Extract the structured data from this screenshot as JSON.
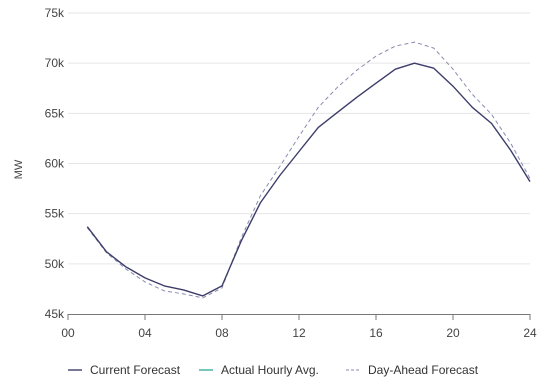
{
  "chart_data": {
    "type": "line",
    "title": "",
    "xlabel": "",
    "ylabel": "MW",
    "x_ticks": [
      "00",
      "04",
      "08",
      "12",
      "16",
      "20",
      "24"
    ],
    "x_tick_values": [
      0,
      4,
      8,
      12,
      16,
      20,
      24
    ],
    "xlim": [
      0,
      24
    ],
    "y_ticks": [
      "45k",
      "50k",
      "55k",
      "60k",
      "65k",
      "70k",
      "75k"
    ],
    "y_tick_values": [
      45000,
      50000,
      55000,
      60000,
      65000,
      70000,
      75000
    ],
    "ylim": [
      45000,
      75000
    ],
    "grid": "horizontal",
    "legend_position": "bottom",
    "series": [
      {
        "name": "Current Forecast",
        "color": "#3d3d6b",
        "style": "solid",
        "x": [
          1,
          2,
          3,
          4,
          5,
          6,
          7,
          8,
          9,
          10,
          11,
          12,
          13,
          14,
          15,
          16,
          17,
          18,
          19,
          20,
          21,
          22,
          23,
          24
        ],
        "values": [
          53700,
          51200,
          49700,
          48600,
          47800,
          47400,
          46800,
          47800,
          52300,
          56100,
          58800,
          61200,
          63600,
          65100,
          66600,
          68000,
          69400,
          70000,
          69500,
          67700,
          65600,
          64000,
          61300,
          58200
        ]
      },
      {
        "name": "Actual Hourly Avg.",
        "color": "#3aaea0",
        "style": "solid",
        "x": [],
        "values": []
      },
      {
        "name": "Day-Ahead Forecast",
        "color": "#8a8ab0",
        "style": "dashed",
        "x": [
          1,
          2,
          3,
          4,
          5,
          6,
          7,
          8,
          9,
          10,
          11,
          12,
          13,
          14,
          15,
          16,
          17,
          18,
          19,
          20,
          21,
          22,
          23,
          24
        ],
        "values": [
          53600,
          51100,
          49500,
          48200,
          47300,
          47000,
          46600,
          47600,
          52600,
          56800,
          59700,
          62700,
          65600,
          67600,
          69300,
          70700,
          71700,
          72100,
          71500,
          69400,
          66900,
          64900,
          62000,
          58500
        ]
      }
    ]
  }
}
